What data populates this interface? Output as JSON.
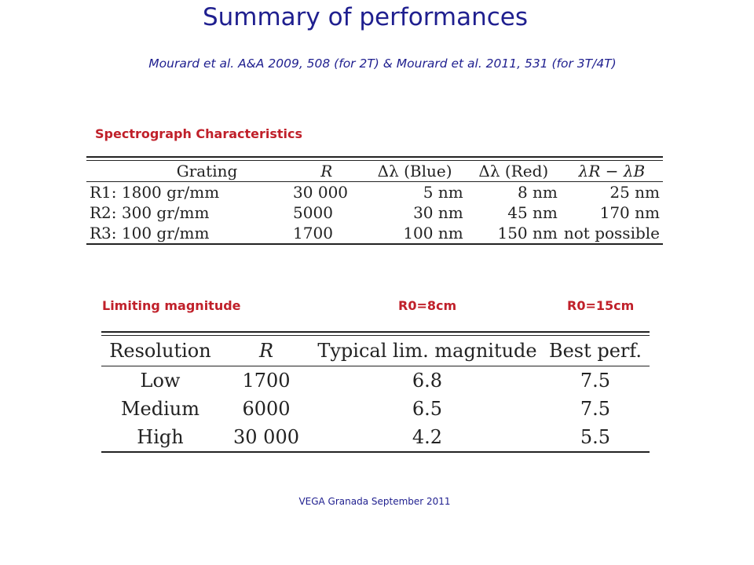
{
  "title": "Summary of performances",
  "subtitle": "Mourard et al. A&A 2009, 508 (for 2T) & Mourard et al. 2011, 531 (for 3T/4T)",
  "spectrograph": {
    "label": "Spectrograph Characteristics",
    "headers": [
      "Grating",
      "R",
      "Δλ (Blue)",
      "Δλ (Red)",
      "λR − λB"
    ],
    "rows": [
      [
        "R1: 1800 gr/mm",
        "30 000",
        "5 nm",
        "8 nm",
        "25 nm"
      ],
      [
        "R2: 300 gr/mm",
        "5000",
        "30 nm",
        "45 nm",
        "170 nm"
      ],
      [
        "R3: 100 gr/mm",
        "1700",
        "100 nm",
        "150 nm",
        "not possible"
      ]
    ]
  },
  "limiting": {
    "label": "Limiting magnitude",
    "r0_8": "R0=8cm",
    "r0_15": "R0=15cm",
    "headers": [
      "Resolution",
      "R",
      "Typical lim. magnitude",
      "Best perf."
    ],
    "rows": [
      [
        "Low",
        "1700",
        "6.8",
        "7.5"
      ],
      [
        "Medium",
        "6000",
        "6.5",
        "7.5"
      ],
      [
        "High",
        "30 000",
        "4.2",
        "5.5"
      ]
    ]
  },
  "footer": "VEGA Granada September 2011"
}
